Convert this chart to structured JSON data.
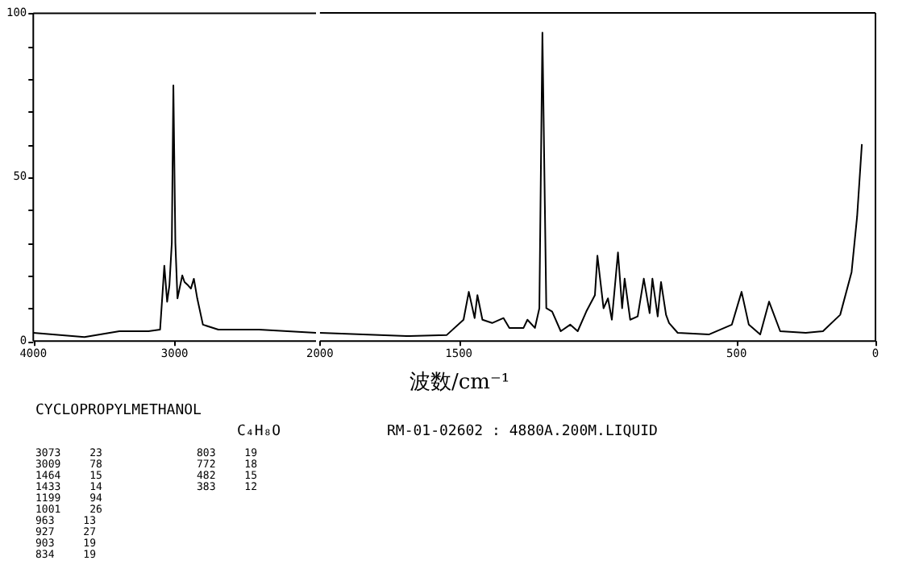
{
  "chart_data": [
    {
      "type": "line",
      "xlim": [
        4000,
        2000
      ],
      "xticks": [
        4000,
        3000
      ],
      "ylim": [
        0,
        100
      ],
      "yticks": [
        0,
        {
          "value": 10,
          "label": null
        },
        {
          "value": 20,
          "label": null
        },
        {
          "value": 30,
          "label": null
        },
        {
          "value": 40,
          "label": null
        },
        50,
        {
          "value": 60,
          "label": null
        },
        {
          "value": 70,
          "label": null
        },
        {
          "value": 80,
          "label": null
        },
        {
          "value": 90,
          "label": null
        },
        100
      ],
      "grid": false,
      "legend": false,
      "marker": "none",
      "line_style": "solid",
      "series": [
        {
          "color": "#000000",
          "x": [
            4000,
            3638,
            3391,
            3185,
            3103,
            3085,
            3073,
            3053,
            3037,
            3020,
            3009,
            2995,
            2980,
            2946,
            2930,
            2905,
            2885,
            2864,
            2840,
            2800,
            2691,
            2403,
            2000
          ],
          "values": [
            2.5,
            1.2,
            3,
            3,
            3.5,
            15,
            23,
            12,
            17,
            30,
            78,
            30,
            13,
            20,
            18,
            17,
            16,
            19,
            13,
            5,
            3.5,
            3.5,
            2.5
          ]
        }
      ]
    },
    {
      "type": "line",
      "xlabel": "波数/cm⁻¹",
      "annotations": [
        "CYCLOPROPYLMETHANOL",
        "C₄H₈O",
        "RM-01-02602 : 4880A.200M.LIQUID",
        "3073 23",
        "3009 78",
        "1464 15",
        "1433 14",
        "1199 94",
        "1001 26",
        "963 13",
        "927 27",
        "903 19",
        "834 19",
        "803 19",
        "772 18",
        "482 15",
        "383 12"
      ],
      "xlim": [
        2000,
        0
      ],
      "xticks": [
        2000,
        1500,
        500,
        0
      ],
      "ylim": [
        0,
        100
      ],
      "tick_labels": "x",
      "grid": false,
      "legend": false,
      "marker": "none",
      "line_style": "solid",
      "series": [
        {
          "color": "#000000",
          "x": [
            2000,
            1688,
            1544,
            1483,
            1464,
            1443,
            1433,
            1415,
            1380,
            1339,
            1318,
            1267,
            1253,
            1226,
            1210,
            1199,
            1185,
            1164,
            1133,
            1099,
            1072,
            1041,
            1010,
            1001,
            979,
            963,
            949,
            927,
            912,
            903,
            883,
            856,
            834,
            813,
            803,
            784,
            772,
            754,
            743,
            712,
            600,
            517,
            482,
            456,
            415,
            383,
            343,
            251,
            189,
            127,
            86,
            66,
            49
          ],
          "values": [
            2.5,
            1.5,
            1.8,
            6.5,
            15,
            7,
            14,
            6.5,
            5.5,
            7,
            4,
            4,
            6.5,
            4,
            10,
            94,
            10,
            9,
            3,
            5,
            3,
            9,
            14,
            26,
            10,
            13,
            6.5,
            27,
            10,
            19,
            6.5,
            7.5,
            19,
            8.5,
            19,
            7.5,
            18,
            8,
            5.5,
            2.5,
            2,
            5,
            15,
            5,
            2,
            12,
            3,
            2.5,
            3,
            8,
            21,
            38,
            60
          ]
        }
      ]
    }
  ]
}
